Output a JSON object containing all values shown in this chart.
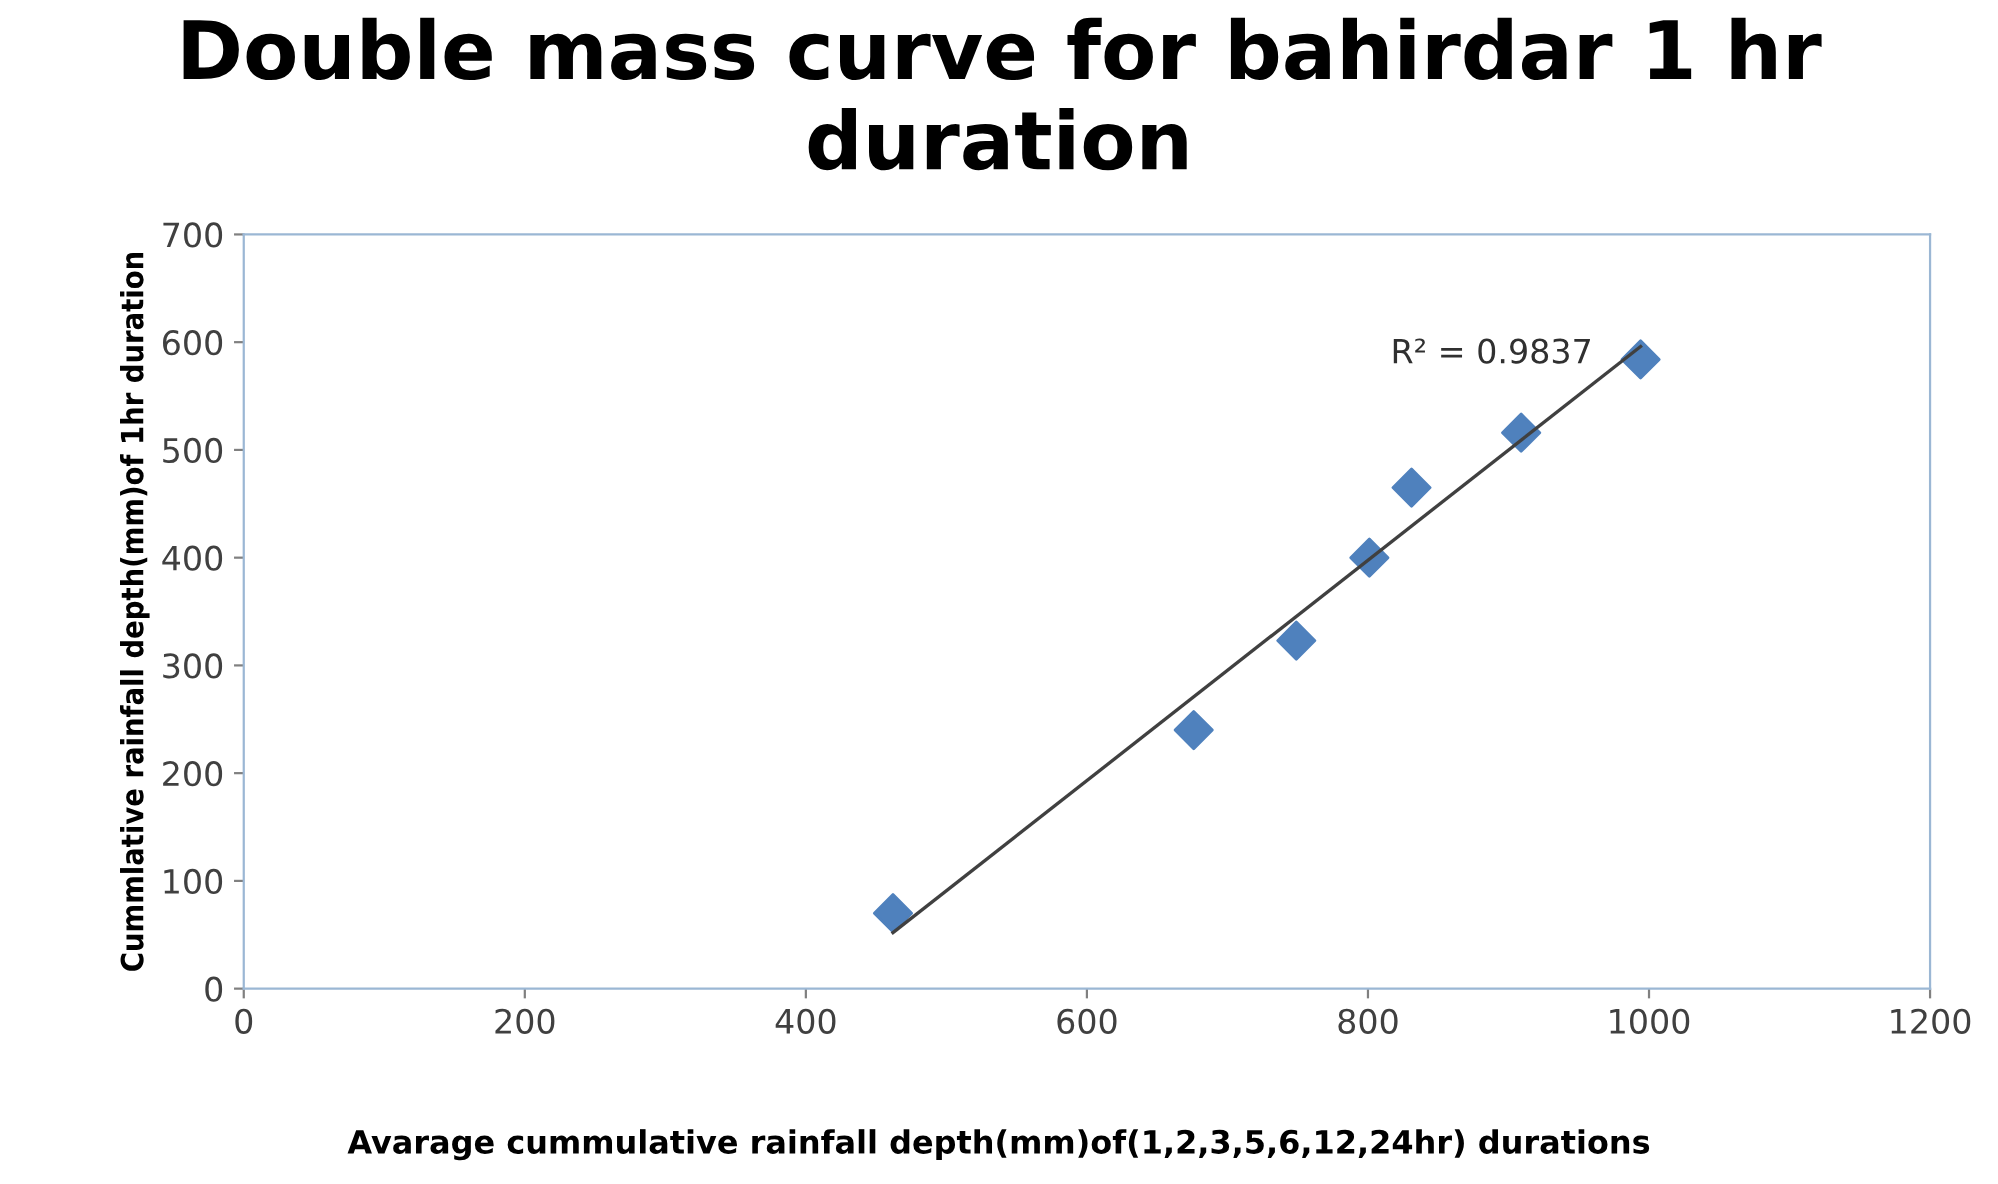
{
  "chart_data": {
    "type": "scatter",
    "title": "Double mass curve for bahirdar 1 hr duration",
    "xlabel": "Avarage cummulative rainfall depth(mm)of(1,2,3,5,6,12,24hr) durations",
    "ylabel": "Cummlative rainfall depth(mm)of 1hr duration",
    "series": [
      {
        "color": "#4f81bd",
        "marker": "diamond",
        "x": [
          462,
          676,
          749,
          801,
          831,
          909,
          994
        ],
        "values": [
          70,
          240,
          323,
          400,
          465,
          516,
          584
        ]
      },
      {
        "type": "line",
        "color": "#404040",
        "marker": "none",
        "line_style": "solid",
        "x": [
          462,
          994
        ],
        "values": [
          52,
          596
        ]
      }
    ],
    "annotations": [
      "R² = 0.9837"
    ],
    "xlim": [
      0,
      1200
    ],
    "xticks": [
      0,
      200,
      400,
      600,
      800,
      1000,
      1200
    ],
    "ylim": [
      0,
      700
    ],
    "yticks": [
      0,
      100,
      200,
      300,
      400,
      500,
      600,
      700
    ],
    "grid": false,
    "legend": false
  }
}
